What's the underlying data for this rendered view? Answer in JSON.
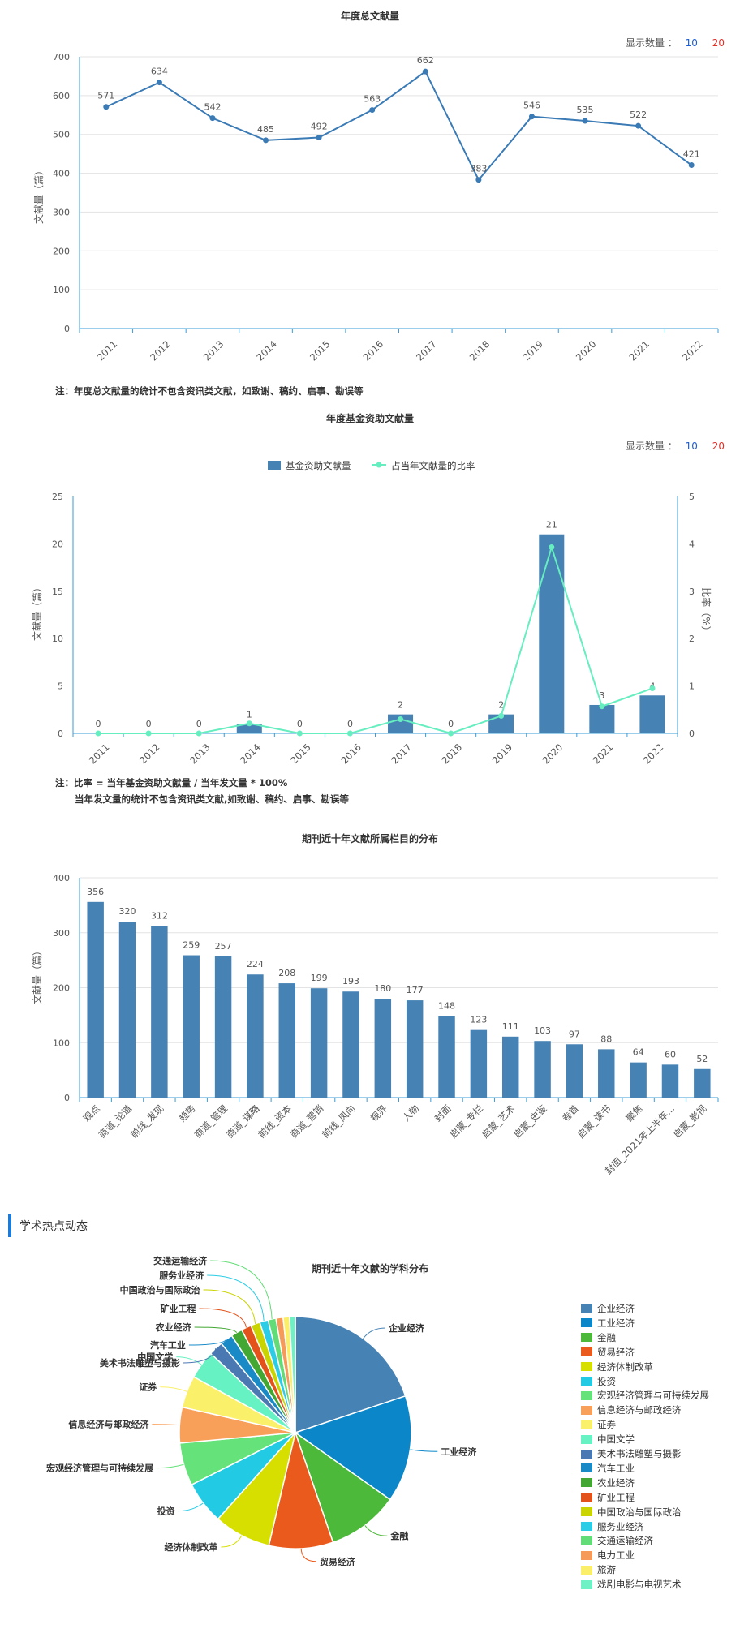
{
  "chart1": {
    "title": "年度总文献量",
    "display": {
      "label": "显示数量 ：",
      "opt1": "10",
      "opt2": "20",
      "opt1_color": "#1a5dd8",
      "opt2_color": "#e0312b"
    },
    "note": "注：年度总文献量的统计不包含资讯类文献，如致谢、稿约、启事、勘误等",
    "chart_data": {
      "type": "line",
      "title": "年度总文献量",
      "ylabel": "文献量（篇）",
      "xlabel": "",
      "x": [
        "2011",
        "2012",
        "2013",
        "2014",
        "2015",
        "2016",
        "2017",
        "2018",
        "2019",
        "2020",
        "2021",
        "2022"
      ],
      "values": [
        571,
        634,
        542,
        485,
        492,
        563,
        662,
        383,
        546,
        535,
        522,
        421
      ],
      "ylim": [
        0,
        700
      ],
      "yticks": [
        0,
        100,
        200,
        300,
        400,
        500,
        600,
        700
      ],
      "color": "#3a7ab5",
      "grid": true
    }
  },
  "chart2": {
    "title": "年度基金资助文献量",
    "display": {
      "label": "显示数量 ：",
      "opt1": "10",
      "opt2": "20",
      "opt1_color": "#1a5dd8",
      "opt2_color": "#e0312b"
    },
    "note1": "注：比率 = 当年基金资助文献量 / 当年发文量 * 100%",
    "note2": "当年发文量的统计不包含资讯类文献,如致谢、稿约、启事、勘误等",
    "chart_data": {
      "type": "bar",
      "title": "年度基金资助文献量",
      "categories": [
        "2011",
        "2012",
        "2013",
        "2014",
        "2015",
        "2016",
        "2017",
        "2018",
        "2019",
        "2020",
        "2021",
        "2022"
      ],
      "series": [
        {
          "name": "基金资助文献量",
          "type": "bar",
          "axis": "left",
          "color": "#4682b4",
          "values": [
            0,
            0,
            0,
            1,
            0,
            0,
            2,
            0,
            2,
            21,
            3,
            4
          ]
        },
        {
          "name": "占当年文献量的比率",
          "type": "line",
          "axis": "right",
          "color": "#66eec0",
          "values": [
            0,
            0,
            0,
            0.21,
            0,
            0,
            0.3,
            0,
            0.37,
            3.93,
            0.57,
            0.95
          ]
        }
      ],
      "ylabel": "文献量（篇）",
      "y2label": "比率（%）",
      "ylim": [
        0,
        25
      ],
      "y2lim": [
        0,
        5
      ],
      "yticks": [
        0,
        5,
        10,
        15,
        20,
        25
      ],
      "y2ticks": [
        0,
        1,
        2,
        3,
        4,
        5
      ],
      "legend_position": "top-center"
    }
  },
  "chart3": {
    "title": "期刊近十年文献所属栏目的分布",
    "chart_data": {
      "type": "bar",
      "title": "期刊近十年文献所属栏目的分布",
      "ylabel": "文献量（篇）",
      "categories": [
        "观点",
        "商道_论道",
        "前线_发现",
        "趋势",
        "商道_管理",
        "商道_谋略",
        "前线_资本",
        "商道_营销",
        "前线_风向",
        "视界",
        "人物",
        "封面",
        "启蒙_专栏",
        "启蒙_艺术",
        "启蒙_史鉴",
        "卷首",
        "启蒙_读书",
        "聚焦",
        "封面_2021年上半年...",
        "启蒙_影视"
      ],
      "values": [
        356,
        320,
        312,
        259,
        257,
        224,
        208,
        199,
        193,
        180,
        177,
        148,
        123,
        111,
        103,
        97,
        88,
        64,
        60,
        52
      ],
      "ylim": [
        0,
        400
      ],
      "yticks": [
        0,
        100,
        200,
        300,
        400
      ],
      "color": "#4682b4"
    }
  },
  "section": {
    "title": "学术热点动态"
  },
  "chart4": {
    "title": "期刊近十年文献的学科分布",
    "chart_data": {
      "type": "pie",
      "title": "期刊近十年文献的学科分布",
      "slices": [
        {
          "name": "企业经济",
          "value": 20.0,
          "color": "#4682b4"
        },
        {
          "name": "工业经济",
          "value": 15.0,
          "color": "#0b87c9"
        },
        {
          "name": "金融",
          "value": 10.0,
          "color": "#4cb93a"
        },
        {
          "name": "贸易经济",
          "value": 9.0,
          "color": "#ea5a1c"
        },
        {
          "name": "经济体制改革",
          "value": 8.0,
          "color": "#d6df00"
        },
        {
          "name": "投资",
          "value": 6.0,
          "color": "#22cbe3"
        },
        {
          "name": "宏观经济管理与可持续发展",
          "value": 6.0,
          "color": "#66e27a"
        },
        {
          "name": "信息经济与邮政经济",
          "value": 5.0,
          "color": "#f8a05a"
        },
        {
          "name": "证券",
          "value": 4.5,
          "color": "#fbf06a"
        },
        {
          "name": "中国文学",
          "value": 4.0,
          "color": "#66f2c2"
        },
        {
          "name": "美术书法雕塑与摄影",
          "value": 2.0,
          "color": "#4a78b3"
        },
        {
          "name": "汽车工业",
          "value": 1.8,
          "color": "#1a8ac7"
        },
        {
          "name": "农业经济",
          "value": 1.6,
          "color": "#43a833"
        },
        {
          "name": "矿业工程",
          "value": 1.4,
          "color": "#e3521a"
        },
        {
          "name": "中国政治与国际政治",
          "value": 1.3,
          "color": "#c9d400"
        },
        {
          "name": "服务业经济",
          "value": 1.2,
          "color": "#2bcde6"
        },
        {
          "name": "交通运输经济",
          "value": 1.1,
          "color": "#62dc76"
        },
        {
          "name": "电力工业",
          "value": 1.0,
          "color": "#f59a58"
        },
        {
          "name": "旅游",
          "value": 0.9,
          "color": "#fbef6a"
        },
        {
          "name": "戏剧电影与电视艺术",
          "value": 0.8,
          "color": "#6ff1c6"
        }
      ],
      "legend_position": "right"
    }
  }
}
